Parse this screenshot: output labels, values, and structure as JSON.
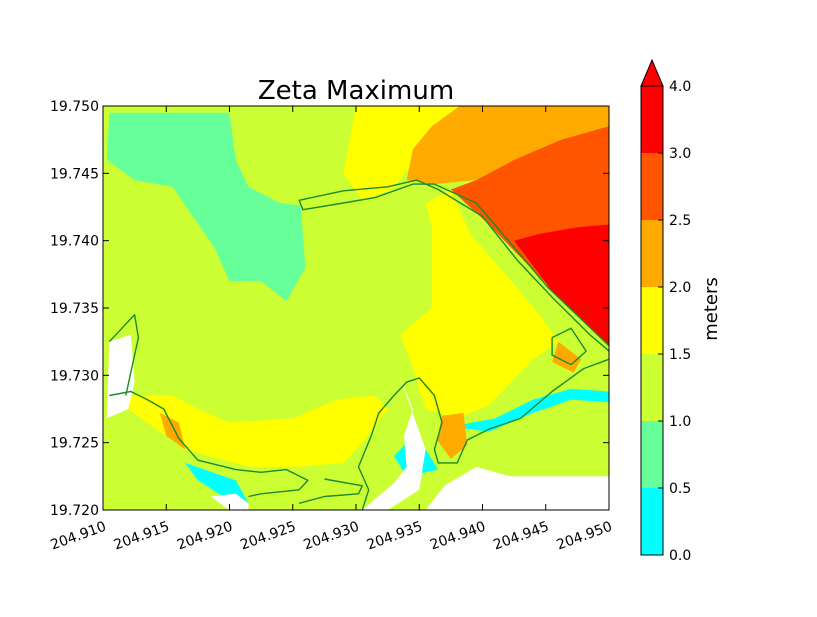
{
  "chart_data": {
    "type": "heatmap",
    "title": "Zeta Maximum",
    "xlabel": "",
    "ylabel": "",
    "xlim": [
      204.91,
      204.95
    ],
    "ylim": [
      19.72,
      19.75
    ],
    "x_ticks": [
      "204.910",
      "204.915",
      "204.920",
      "204.925",
      "204.930",
      "204.935",
      "204.940",
      "204.945",
      "204.950"
    ],
    "y_ticks": [
      "19.750",
      "19.745",
      "19.740",
      "19.735",
      "19.730",
      "19.725",
      "19.720"
    ],
    "colorbar": {
      "label": "meters",
      "levels": [
        0.0,
        0.5,
        1.0,
        1.5,
        2.0,
        2.5,
        3.0,
        4.0
      ],
      "tick_labels": [
        "0.0",
        "0.5",
        "1.0",
        "1.5",
        "2.0",
        "2.5",
        "3.0",
        "4.0"
      ],
      "colors": [
        "#00ffff",
        "#66ff99",
        "#ccff33",
        "#ffff00",
        "#ffaa00",
        "#ff5500",
        "#ff0000"
      ],
      "extend": "max"
    },
    "regions": [
      {
        "level_band": "0.5-1.0",
        "color": "#66ff99",
        "polygon": [
          [
            204.9105,
            19.7495
          ],
          [
            204.92,
            19.7495
          ],
          [
            204.9205,
            19.746
          ],
          [
            204.9215,
            19.744
          ],
          [
            204.924,
            19.7428
          ],
          [
            204.9256,
            19.743
          ],
          [
            204.926,
            19.738
          ],
          [
            204.9245,
            19.7355
          ],
          [
            204.9225,
            19.737
          ],
          [
            204.92,
            19.737
          ],
          [
            204.9188,
            19.7395
          ],
          [
            204.9155,
            19.744
          ],
          [
            204.9125,
            19.7445
          ],
          [
            204.9103,
            19.746
          ]
        ]
      },
      {
        "level_band": "1.0-1.5",
        "color": "#ccff33",
        "polygon": [
          [
            204.92,
            19.7495
          ],
          [
            204.93,
            19.7495
          ],
          [
            204.929,
            19.745
          ],
          [
            204.9265,
            19.7425
          ],
          [
            204.924,
            19.7428
          ],
          [
            204.9215,
            19.744
          ],
          [
            204.9205,
            19.746
          ]
        ]
      },
      {
        "level_band": "1.5-2.0",
        "color": "#ffff00",
        "polygon": [
          [
            204.93,
            19.75
          ],
          [
            204.9382,
            19.75
          ],
          [
            204.9362,
            19.7485
          ],
          [
            204.9345,
            19.7458
          ],
          [
            204.9332,
            19.7442
          ],
          [
            204.9328,
            19.7438
          ],
          [
            204.9305,
            19.743
          ],
          [
            204.929,
            19.745
          ]
        ]
      },
      {
        "level_band": "2.0-2.5",
        "color": "#ffaa00",
        "polygon": [
          [
            204.9382,
            19.75
          ],
          [
            204.95,
            19.75
          ],
          [
            204.95,
            19.7485
          ],
          [
            204.9462,
            19.7475
          ],
          [
            204.9425,
            19.746
          ],
          [
            204.9395,
            19.7445
          ],
          [
            204.9362,
            19.7442
          ],
          [
            204.934,
            19.7445
          ],
          [
            204.9345,
            19.7468
          ],
          [
            204.936,
            19.7485
          ]
        ]
      },
      {
        "level_band": "2.5-3.0",
        "color": "#ff5500",
        "polygon": [
          [
            204.9395,
            19.7445
          ],
          [
            204.9425,
            19.746
          ],
          [
            204.9462,
            19.7475
          ],
          [
            204.95,
            19.7485
          ],
          [
            204.95,
            19.7322
          ],
          [
            204.9475,
            19.7345
          ],
          [
            204.944,
            19.7378
          ],
          [
            204.9405,
            19.7412
          ],
          [
            204.9375,
            19.7438
          ]
        ]
      },
      {
        "level_band": "3.0-4.0",
        "color": "#ff0000",
        "polygon": [
          [
            204.95,
            19.7412
          ],
          [
            204.95,
            19.7322
          ],
          [
            204.9475,
            19.7345
          ],
          [
            204.9455,
            19.7362
          ],
          [
            204.9445,
            19.7375
          ],
          [
            204.9425,
            19.74
          ],
          [
            204.9445,
            19.7405
          ],
          [
            204.9475,
            19.741
          ]
        ]
      },
      {
        "level_band": "1.5-2.0",
        "color": "#ffff00",
        "polygon": [
          [
            204.9355,
            19.7428
          ],
          [
            204.9375,
            19.7438
          ],
          [
            204.939,
            19.7405
          ],
          [
            204.9418,
            19.7375
          ],
          [
            204.9445,
            19.7345
          ],
          [
            204.946,
            19.7325
          ],
          [
            204.944,
            19.7312
          ],
          [
            204.9405,
            19.7278
          ],
          [
            204.938,
            19.7268
          ],
          [
            204.9355,
            19.7275
          ],
          [
            204.9345,
            19.7305
          ],
          [
            204.9335,
            19.733
          ],
          [
            204.936,
            19.735
          ],
          [
            204.936,
            19.741
          ]
        ]
      },
      {
        "level_band": "1.5-2.0",
        "color": "#ffff00",
        "polygon": [
          [
            204.9105,
            19.7285
          ],
          [
            204.9135,
            19.7265
          ],
          [
            204.9165,
            19.7245
          ],
          [
            204.9215,
            19.7232
          ],
          [
            204.9255,
            19.7232
          ],
          [
            204.929,
            19.7235
          ],
          [
            204.9305,
            19.725
          ],
          [
            204.9325,
            19.7275
          ],
          [
            204.9315,
            19.7285
          ],
          [
            204.9285,
            19.7282
          ],
          [
            204.925,
            19.7268
          ],
          [
            204.92,
            19.7265
          ],
          [
            204.9175,
            19.7275
          ],
          [
            204.9155,
            19.7285
          ]
        ]
      },
      {
        "level_band": "0.0-0.5",
        "color": "#00ffff",
        "polygon": [
          [
            204.9165,
            19.7235
          ],
          [
            204.9205,
            19.7222
          ],
          [
            204.9215,
            19.7205
          ],
          [
            204.9195,
            19.721
          ],
          [
            204.9175,
            19.7222
          ]
        ]
      },
      {
        "level_band": "0.0-0.5",
        "color": "#00ffff",
        "polygon": [
          [
            204.9345,
            19.7255
          ],
          [
            204.9355,
            19.7245
          ],
          [
            204.9365,
            19.723
          ],
          [
            204.934,
            19.7225
          ],
          [
            204.933,
            19.724
          ]
        ]
      },
      {
        "level_band": "0.0-0.5",
        "color": "#00ffff",
        "polygon": [
          [
            204.9375,
            19.7262
          ],
          [
            204.941,
            19.7268
          ],
          [
            204.944,
            19.7282
          ],
          [
            204.947,
            19.729
          ],
          [
            204.95,
            19.7288
          ],
          [
            204.95,
            19.728
          ],
          [
            204.947,
            19.7282
          ],
          [
            204.944,
            19.7272
          ],
          [
            204.9405,
            19.7258
          ]
        ]
      },
      {
        "level_band": "2.0-2.5",
        "color": "#ffaa00",
        "polygon": [
          [
            204.9368,
            19.727
          ],
          [
            204.9385,
            19.7272
          ],
          [
            204.9388,
            19.7248
          ],
          [
            204.9375,
            19.7238
          ],
          [
            204.9364,
            19.7252
          ]
        ]
      },
      {
        "level_band": "2.0-2.5",
        "color": "#ffaa00",
        "polygon": [
          [
            204.946,
            19.7325
          ],
          [
            204.9478,
            19.7312
          ],
          [
            204.9472,
            19.7302
          ],
          [
            204.9455,
            19.731
          ]
        ]
      },
      {
        "level_band": "2.0-2.5",
        "color": "#ffaa00",
        "polygon": [
          [
            204.9145,
            19.7272
          ],
          [
            204.916,
            19.7265
          ],
          [
            204.9165,
            19.7245
          ],
          [
            204.915,
            19.7255
          ]
        ]
      }
    ],
    "masked_land": [
      {
        "polygon": [
          [
            204.9105,
            19.7325
          ],
          [
            204.9122,
            19.733
          ],
          [
            204.9125,
            19.7295
          ],
          [
            204.912,
            19.7275
          ],
          [
            204.9103,
            19.7268
          ]
        ]
      },
      {
        "polygon": [
          [
            204.9185,
            19.721
          ],
          [
            204.92,
            19.72
          ],
          [
            204.9215,
            19.72
          ],
          [
            204.9215,
            19.7205
          ],
          [
            204.9205,
            19.7212
          ]
        ]
      },
      {
        "polygon": [
          [
            204.9335,
            19.7298
          ],
          [
            204.9345,
            19.7275
          ],
          [
            204.9338,
            19.7255
          ],
          [
            204.934,
            19.7232
          ],
          [
            204.933,
            19.722
          ],
          [
            204.9305,
            19.72
          ],
          [
            204.9325,
            19.72
          ],
          [
            204.935,
            19.7215
          ],
          [
            204.9355,
            19.7245
          ]
        ]
      },
      {
        "polygon": [
          [
            204.9422,
            19.7225
          ],
          [
            204.95,
            19.7225
          ],
          [
            204.95,
            19.72
          ],
          [
            204.9355,
            19.72
          ],
          [
            204.937,
            19.7218
          ],
          [
            204.9395,
            19.7232
          ]
        ]
      }
    ],
    "coastlines": [
      {
        "points": [
          [
            204.9255,
            19.743
          ],
          [
            204.9258,
            19.7423
          ],
          [
            204.929,
            19.7428
          ],
          [
            204.9315,
            19.7432
          ],
          [
            204.9345,
            19.7442
          ],
          [
            204.9362,
            19.7442
          ],
          [
            204.9395,
            19.7428
          ],
          [
            204.9425,
            19.7395
          ],
          [
            204.9452,
            19.7365
          ],
          [
            204.948,
            19.734
          ],
          [
            204.95,
            19.7322
          ]
        ]
      },
      {
        "points": [
          [
            204.9255,
            19.743
          ],
          [
            204.929,
            19.7437
          ],
          [
            204.9325,
            19.744
          ],
          [
            204.9348,
            19.7445
          ],
          [
            204.9365,
            19.7438
          ],
          [
            204.94,
            19.7418
          ],
          [
            204.9428,
            19.7385
          ],
          [
            204.9455,
            19.7358
          ],
          [
            204.9485,
            19.733
          ],
          [
            204.95,
            19.7318
          ]
        ]
      },
      {
        "points": [
          [
            204.9105,
            19.7285
          ],
          [
            204.9122,
            19.7288
          ],
          [
            204.9135,
            19.7282
          ],
          [
            204.9148,
            19.7275
          ],
          [
            204.916,
            19.7253
          ],
          [
            204.9175,
            19.7237
          ],
          [
            204.9205,
            19.723
          ],
          [
            204.9225,
            19.7228
          ],
          [
            204.9245,
            19.723
          ],
          [
            204.9262,
            19.7222
          ],
          [
            204.9255,
            19.7215
          ],
          [
            204.9225,
            19.7212
          ],
          [
            204.9215,
            19.721
          ]
        ]
      },
      {
        "points": [
          [
            204.9105,
            19.7325
          ],
          [
            204.9125,
            19.7345
          ],
          [
            204.9128,
            19.7328
          ],
          [
            204.9118,
            19.7285
          ]
        ]
      },
      {
        "points": [
          [
            204.9305,
            19.72
          ],
          [
            204.931,
            19.7215
          ],
          [
            204.9302,
            19.7232
          ],
          [
            204.9312,
            19.7255
          ],
          [
            204.9318,
            19.7272
          ],
          [
            204.933,
            19.7285
          ],
          [
            204.934,
            19.7295
          ],
          [
            204.935,
            19.7298
          ],
          [
            204.9362,
            19.7285
          ],
          [
            204.9368,
            19.7265
          ],
          [
            204.9362,
            19.7245
          ],
          [
            204.9365,
            19.7235
          ],
          [
            204.938,
            19.7235
          ],
          [
            204.9388,
            19.7252
          ],
          [
            204.9405,
            19.726
          ],
          [
            204.943,
            19.7268
          ],
          [
            204.9455,
            19.7288
          ],
          [
            204.948,
            19.7305
          ],
          [
            204.95,
            19.7312
          ]
        ]
      },
      {
        "points": [
          [
            204.9455,
            19.7328
          ],
          [
            204.947,
            19.7335
          ],
          [
            204.9482,
            19.7318
          ],
          [
            204.947,
            19.7308
          ],
          [
            204.9455,
            19.7315
          ],
          [
            204.9455,
            19.7328
          ]
        ]
      },
      {
        "points": [
          [
            204.9275,
            19.7223
          ],
          [
            204.9305,
            19.7218
          ],
          [
            204.9302,
            19.7212
          ],
          [
            204.9275,
            19.721
          ],
          [
            204.9255,
            19.7205
          ]
        ]
      }
    ]
  }
}
